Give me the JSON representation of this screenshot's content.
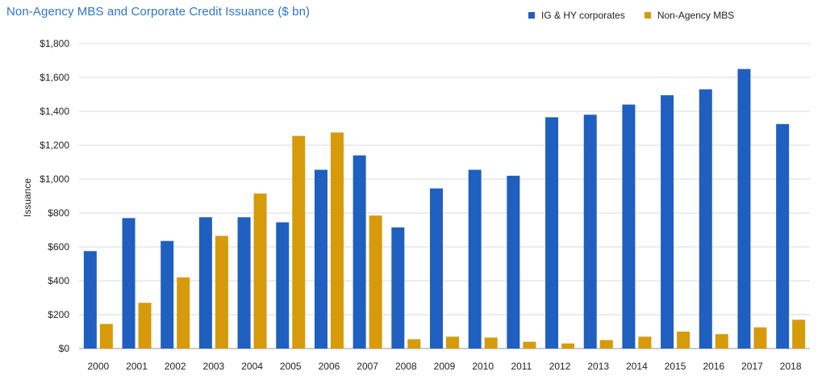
{
  "chart_data": {
    "type": "bar",
    "title": "Non-Agency MBS and Corporate Credit Issuance ($ bn)",
    "xlabel": "",
    "ylabel": "Issuance",
    "ylim": [
      0,
      1800
    ],
    "yticks": [
      0,
      200,
      400,
      600,
      800,
      1000,
      1200,
      1400,
      1600,
      1800
    ],
    "ytick_labels": [
      "$0",
      "$200",
      "$400",
      "$600",
      "$800",
      "$1,000",
      "$1,200",
      "$1,400",
      "$1,600",
      "$1,800"
    ],
    "grid": true,
    "legend_position": "top-right",
    "categories": [
      "2000",
      "2001",
      "2002",
      "2003",
      "2004",
      "2005",
      "2006",
      "2007",
      "2008",
      "2009",
      "2010",
      "2011",
      "2012",
      "2013",
      "2014",
      "2015",
      "2016",
      "2017",
      "2018"
    ],
    "series": [
      {
        "name": "IG & HY corporates",
        "color": "#1f5fbf",
        "values": [
          575,
          770,
          635,
          775,
          775,
          745,
          1055,
          1140,
          715,
          945,
          1055,
          1020,
          1365,
          1380,
          1440,
          1495,
          1530,
          1650,
          1325
        ]
      },
      {
        "name": "Non-Agency MBS",
        "color": "#d69a0a",
        "values": [
          145,
          270,
          420,
          665,
          915,
          1255,
          1275,
          785,
          55,
          70,
          65,
          40,
          30,
          50,
          70,
          100,
          85,
          125,
          170
        ]
      }
    ]
  }
}
